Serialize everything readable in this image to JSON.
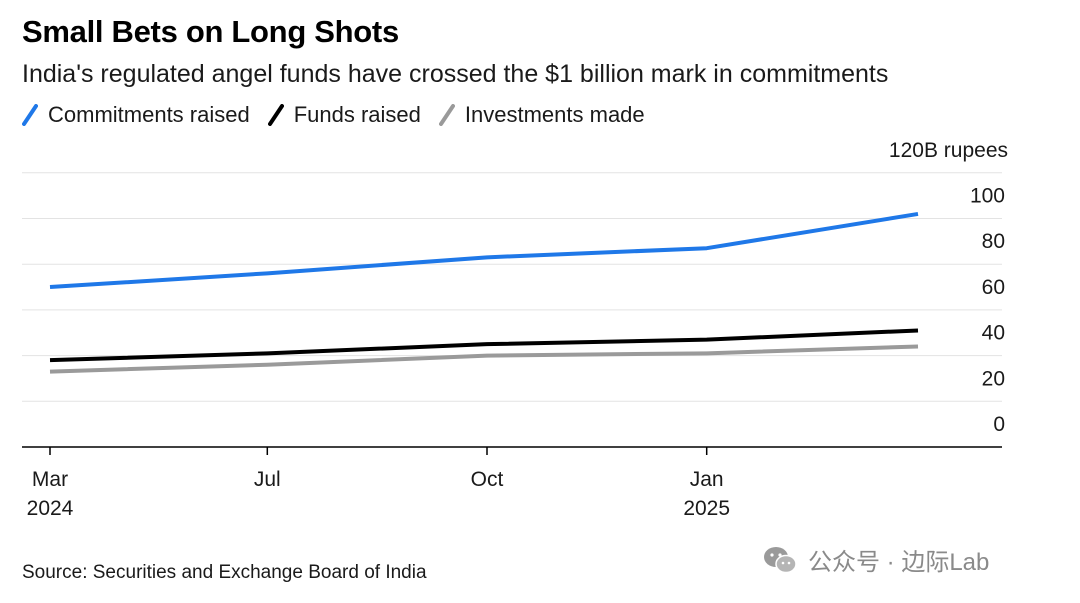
{
  "title": "Small Bets on Long Shots",
  "subtitle": "India's regulated angel funds have crossed the $1 billion mark in commitments",
  "source": "Source: Securities and Exchange Board of India",
  "watermark": "公众号 · 边际Lab",
  "chart_data": {
    "type": "line",
    "unit_label": "120B rupees",
    "ylim": [
      0,
      120
    ],
    "yticks": [
      0,
      20,
      40,
      60,
      80,
      100
    ],
    "x_ticks": [
      {
        "label": "Mar",
        "label2": "2024",
        "date": "2024-03-31"
      },
      {
        "label": "Jul",
        "label2": "",
        "date": "2024-06-30"
      },
      {
        "label": "Oct",
        "label2": "",
        "date": "2024-09-30"
      },
      {
        "label": "Jan",
        "label2": "2025",
        "date": "2024-12-31"
      }
    ],
    "x": [
      "2024-03-31",
      "2024-06-30",
      "2024-09-30",
      "2024-12-31",
      "2025-03-31"
    ],
    "series": [
      {
        "name": "Commitments raised",
        "color": "#1f78e8",
        "values": [
          70,
          76,
          83,
          87,
          102
        ]
      },
      {
        "name": "Funds raised",
        "color": "#000000",
        "values": [
          38,
          41,
          45,
          47,
          51
        ]
      },
      {
        "name": "Investments made",
        "color": "#9a9a9a",
        "values": [
          33,
          36,
          40,
          41,
          44
        ]
      }
    ],
    "grid": true,
    "legend": "top-left"
  }
}
